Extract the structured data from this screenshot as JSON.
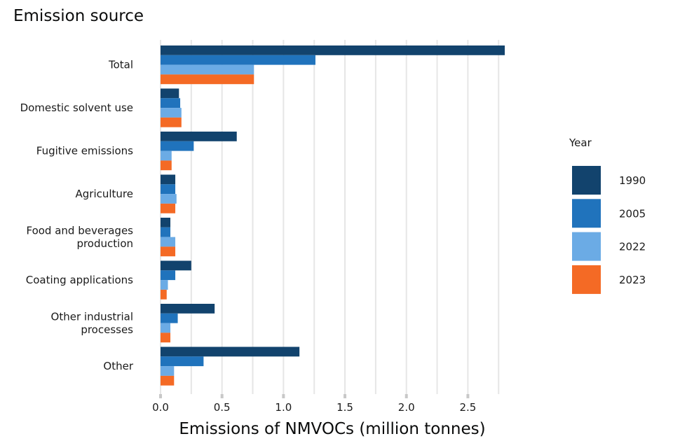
{
  "chart_data": {
    "type": "bar",
    "orientation": "horizontal",
    "title": "Emission source",
    "xlabel": "Emissions of NMVOCs (million tonnes)",
    "ylabel": "Emission source",
    "xlim": [
      0,
      2.8
    ],
    "xticks": [
      "0.0",
      "0.5",
      "1.0",
      "1.5",
      "2.0",
      "2.5"
    ],
    "grid": true,
    "legend_title": "Year",
    "legend_position": "right",
    "categories": [
      [
        "Total"
      ],
      [
        "Domestic solvent use"
      ],
      [
        "Fugitive emissions"
      ],
      [
        "Agriculture"
      ],
      [
        "Food and beverages",
        "production"
      ],
      [
        "Coating applications"
      ],
      [
        "Other industrial",
        "processes"
      ],
      [
        "Other"
      ]
    ],
    "series": [
      {
        "name": "1990",
        "color": "#12436d",
        "values": [
          2.8,
          0.15,
          0.62,
          0.12,
          0.08,
          0.25,
          0.44,
          1.13
        ]
      },
      {
        "name": "2005",
        "color": "#2073bc",
        "values": [
          1.26,
          0.16,
          0.27,
          0.12,
          0.08,
          0.12,
          0.14,
          0.35
        ]
      },
      {
        "name": "2022",
        "color": "#6babe5",
        "values": [
          0.76,
          0.17,
          0.09,
          0.13,
          0.12,
          0.06,
          0.08,
          0.11
        ]
      },
      {
        "name": "2023",
        "color": "#f46a25",
        "values": [
          0.76,
          0.17,
          0.09,
          0.12,
          0.12,
          0.05,
          0.08,
          0.11
        ]
      }
    ]
  }
}
